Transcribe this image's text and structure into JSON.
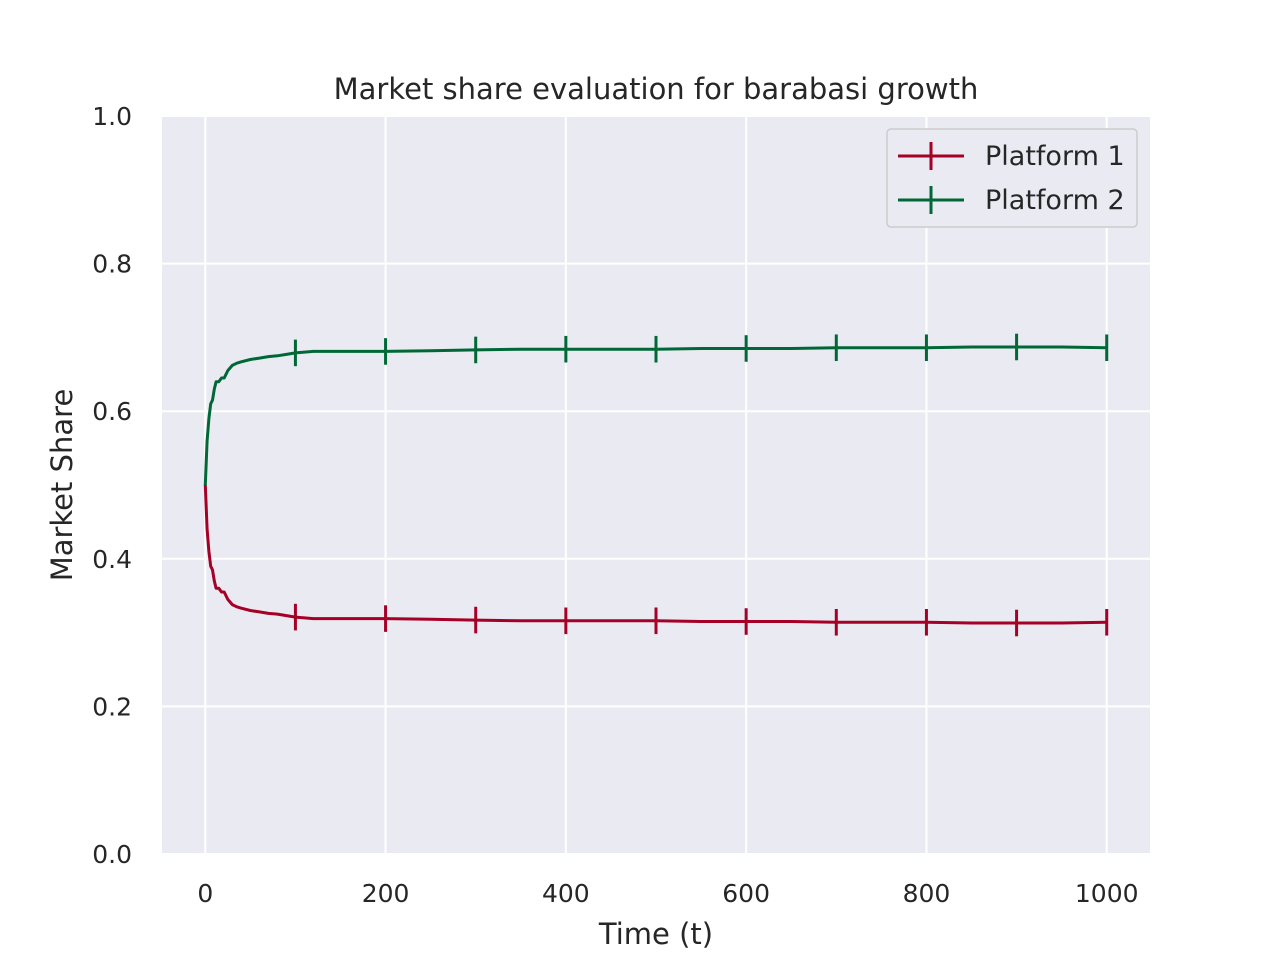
{
  "chart_data": {
    "type": "line",
    "title": "Market share evaluation for barabasi growth",
    "xlabel": "Time (t)",
    "ylabel": "Market Share",
    "xlim": [
      -48,
      1048
    ],
    "ylim": [
      0.0,
      1.0
    ],
    "xticks": [
      0,
      200,
      400,
      600,
      800,
      1000
    ],
    "yticks": [
      0.0,
      0.2,
      0.4,
      0.6,
      0.8,
      1.0
    ],
    "xtick_labels": [
      "0",
      "200",
      "400",
      "600",
      "800",
      "1000"
    ],
    "ytick_labels": [
      "0.0",
      "0.2",
      "0.4",
      "0.6",
      "0.8",
      "1.0"
    ],
    "grid": true,
    "legend_position": "top-right",
    "errorbar_x": [
      100,
      200,
      300,
      400,
      500,
      600,
      700,
      800,
      900,
      1000
    ],
    "errorbar_halfwidth": 0.018,
    "series": [
      {
        "name": "Platform 1",
        "color": "#a50026",
        "x": [
          0,
          2,
          4,
          6,
          8,
          10,
          12,
          15,
          18,
          21,
          25,
          30,
          35,
          40,
          50,
          60,
          70,
          80,
          90,
          100,
          120,
          150,
          180,
          200,
          250,
          300,
          350,
          400,
          450,
          500,
          550,
          600,
          650,
          700,
          750,
          800,
          850,
          900,
          950,
          1000
        ],
        "y": [
          0.5,
          0.44,
          0.41,
          0.39,
          0.385,
          0.37,
          0.36,
          0.36,
          0.355,
          0.355,
          0.345,
          0.338,
          0.335,
          0.333,
          0.33,
          0.328,
          0.326,
          0.325,
          0.323,
          0.321,
          0.319,
          0.319,
          0.319,
          0.319,
          0.318,
          0.317,
          0.316,
          0.316,
          0.316,
          0.316,
          0.315,
          0.315,
          0.315,
          0.314,
          0.314,
          0.314,
          0.313,
          0.313,
          0.313,
          0.314
        ]
      },
      {
        "name": "Platform 2",
        "color": "#006837",
        "x": [
          0,
          2,
          4,
          6,
          8,
          10,
          12,
          15,
          18,
          21,
          25,
          30,
          35,
          40,
          50,
          60,
          70,
          80,
          90,
          100,
          120,
          150,
          180,
          200,
          250,
          300,
          350,
          400,
          450,
          500,
          550,
          600,
          650,
          700,
          750,
          800,
          850,
          900,
          950,
          1000
        ],
        "y": [
          0.5,
          0.56,
          0.59,
          0.61,
          0.615,
          0.63,
          0.64,
          0.64,
          0.645,
          0.645,
          0.655,
          0.662,
          0.665,
          0.667,
          0.67,
          0.672,
          0.674,
          0.675,
          0.677,
          0.679,
          0.681,
          0.681,
          0.681,
          0.681,
          0.682,
          0.683,
          0.684,
          0.684,
          0.684,
          0.684,
          0.685,
          0.685,
          0.685,
          0.686,
          0.686,
          0.686,
          0.687,
          0.687,
          0.687,
          0.686
        ]
      }
    ]
  }
}
